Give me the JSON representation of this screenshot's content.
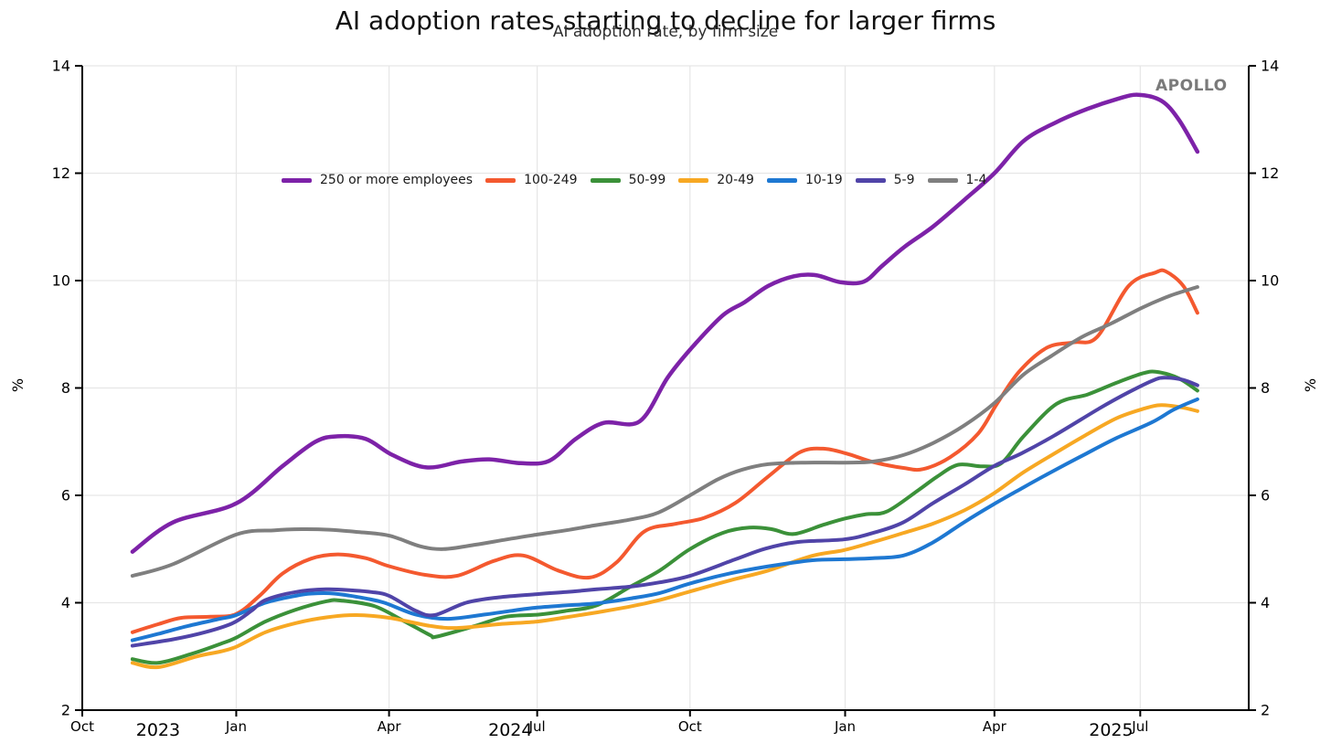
{
  "header": {
    "title": "AI adoption rates starting to decline for larger firms",
    "subtitle": "AI adoption rate, by firm size",
    "brand": "APOLLO"
  },
  "legend": {
    "items": [
      {
        "label": "250 or more employees",
        "color": "#7D22A8"
      },
      {
        "label": "100-249",
        "color": "#F4592F"
      },
      {
        "label": "50-99",
        "color": "#3B9139"
      },
      {
        "label": "20-49",
        "color": "#F7A823"
      },
      {
        "label": "10-19",
        "color": "#1E78D2"
      },
      {
        "label": "5-9",
        "color": "#5044A8"
      },
      {
        "label": "1-4",
        "color": "#7F7F7F"
      }
    ]
  },
  "chart_data": {
    "type": "line",
    "title": "AI adoption rates starting to decline for larger firms",
    "subtitle": "AI adoption rate, by firm size",
    "ylabel_left": "%",
    "ylabel_right": "%",
    "ylim": [
      2,
      14
    ],
    "yticks": [
      2,
      4,
      6,
      8,
      10,
      12,
      14
    ],
    "grid": true,
    "grid_color": "#E6E6E6",
    "axis_color": "#000000",
    "legend_position": "upper-left-inside",
    "x_axis": {
      "month_ticks": [
        {
          "label": "Oct",
          "pos": 0
        },
        {
          "label": "Jan",
          "pos": 13.2
        },
        {
          "label": "Apr",
          "pos": 26.3
        },
        {
          "label": "Jul",
          "pos": 39.0
        },
        {
          "label": "Oct",
          "pos": 52.1
        },
        {
          "label": "Jan",
          "pos": 65.4
        },
        {
          "label": "Apr",
          "pos": 78.2
        },
        {
          "label": "Jul",
          "pos": 90.7
        }
      ],
      "year_labels": [
        {
          "label": "2023",
          "pos": 6.5
        },
        {
          "label": "2024",
          "pos": 36.7
        },
        {
          "label": "2025",
          "pos": 88.2
        }
      ]
    },
    "series": [
      {
        "name": "250 or more employees",
        "color": "#7D22A8",
        "width": 4.5,
        "points": [
          [
            4.3,
            4.95
          ],
          [
            7.8,
            5.5
          ],
          [
            13.2,
            5.85
          ],
          [
            17.2,
            6.55
          ],
          [
            20.0,
            7.0
          ],
          [
            21.9,
            7.1
          ],
          [
            24.3,
            7.05
          ],
          [
            26.6,
            6.75
          ],
          [
            29.5,
            6.52
          ],
          [
            32.5,
            6.63
          ],
          [
            34.9,
            6.67
          ],
          [
            37.6,
            6.6
          ],
          [
            40.0,
            6.64
          ],
          [
            42.3,
            7.05
          ],
          [
            44.7,
            7.35
          ],
          [
            47.8,
            7.38
          ],
          [
            50.2,
            8.2
          ],
          [
            52.3,
            8.76
          ],
          [
            54.9,
            9.35
          ],
          [
            56.8,
            9.6
          ],
          [
            58.8,
            9.9
          ],
          [
            61.0,
            10.08
          ],
          [
            62.9,
            10.1
          ],
          [
            65.0,
            9.97
          ],
          [
            67.0,
            9.98
          ],
          [
            68.6,
            10.28
          ],
          [
            70.5,
            10.63
          ],
          [
            72.9,
            11.0
          ],
          [
            75.6,
            11.5
          ],
          [
            78.2,
            12.0
          ],
          [
            80.7,
            12.6
          ],
          [
            83.5,
            12.95
          ],
          [
            86.2,
            13.2
          ],
          [
            88.7,
            13.38
          ],
          [
            90.5,
            13.46
          ],
          [
            92.5,
            13.35
          ],
          [
            94.0,
            13.0
          ],
          [
            95.6,
            12.4
          ]
        ]
      },
      {
        "name": "100-249",
        "color": "#F4592F",
        "width": 4,
        "points": [
          [
            4.3,
            3.45
          ],
          [
            6.5,
            3.6
          ],
          [
            8.5,
            3.72
          ],
          [
            11.0,
            3.74
          ],
          [
            13.2,
            3.79
          ],
          [
            15.3,
            4.15
          ],
          [
            17.2,
            4.55
          ],
          [
            19.6,
            4.82
          ],
          [
            21.9,
            4.9
          ],
          [
            24.3,
            4.83
          ],
          [
            26.3,
            4.68
          ],
          [
            29.4,
            4.52
          ],
          [
            32.1,
            4.5
          ],
          [
            35.3,
            4.78
          ],
          [
            37.8,
            4.88
          ],
          [
            40.8,
            4.6
          ],
          [
            43.5,
            4.47
          ],
          [
            45.8,
            4.75
          ],
          [
            48.2,
            5.33
          ],
          [
            50.9,
            5.47
          ],
          [
            53.3,
            5.58
          ],
          [
            56.0,
            5.86
          ],
          [
            58.8,
            6.35
          ],
          [
            61.5,
            6.8
          ],
          [
            63.5,
            6.87
          ],
          [
            65.5,
            6.78
          ],
          [
            67.8,
            6.62
          ],
          [
            70.4,
            6.51
          ],
          [
            72.1,
            6.49
          ],
          [
            74.4,
            6.71
          ],
          [
            76.8,
            7.15
          ],
          [
            78.4,
            7.7
          ],
          [
            80.3,
            8.3
          ],
          [
            82.7,
            8.75
          ],
          [
            85.0,
            8.85
          ],
          [
            87.0,
            8.95
          ],
          [
            89.7,
            9.9
          ],
          [
            92.0,
            10.15
          ],
          [
            92.9,
            10.17
          ],
          [
            94.4,
            9.9
          ],
          [
            95.6,
            9.4
          ]
        ]
      },
      {
        "name": "50-99",
        "color": "#3B9139",
        "width": 4,
        "points": [
          [
            4.3,
            2.95
          ],
          [
            6.5,
            2.88
          ],
          [
            9.4,
            3.05
          ],
          [
            11.8,
            3.23
          ],
          [
            13.2,
            3.35
          ],
          [
            15.7,
            3.65
          ],
          [
            18.3,
            3.87
          ],
          [
            21.0,
            4.03
          ],
          [
            22.2,
            4.04
          ],
          [
            25.0,
            3.94
          ],
          [
            27.4,
            3.68
          ],
          [
            29.8,
            3.4
          ],
          [
            30.4,
            3.37
          ],
          [
            33.7,
            3.57
          ],
          [
            36.3,
            3.74
          ],
          [
            39.2,
            3.78
          ],
          [
            41.5,
            3.85
          ],
          [
            44.1,
            3.95
          ],
          [
            47.0,
            4.3
          ],
          [
            49.5,
            4.6
          ],
          [
            52.1,
            5.0
          ],
          [
            54.9,
            5.3
          ],
          [
            57.2,
            5.4
          ],
          [
            59.1,
            5.37
          ],
          [
            61.0,
            5.28
          ],
          [
            63.5,
            5.45
          ],
          [
            65.4,
            5.57
          ],
          [
            67.2,
            5.65
          ],
          [
            69.0,
            5.7
          ],
          [
            71.7,
            6.1
          ],
          [
            73.3,
            6.35
          ],
          [
            75.1,
            6.57
          ],
          [
            77.2,
            6.54
          ],
          [
            78.8,
            6.6
          ],
          [
            80.7,
            7.1
          ],
          [
            83.5,
            7.7
          ],
          [
            86.2,
            7.88
          ],
          [
            88.7,
            8.1
          ],
          [
            90.9,
            8.27
          ],
          [
            92.1,
            8.3
          ],
          [
            94.0,
            8.18
          ],
          [
            95.6,
            7.95
          ]
        ]
      },
      {
        "name": "20-49",
        "color": "#F7A823",
        "width": 4,
        "points": [
          [
            4.3,
            2.88
          ],
          [
            6.5,
            2.8
          ],
          [
            9.8,
            3.0
          ],
          [
            11.8,
            3.09
          ],
          [
            13.2,
            3.18
          ],
          [
            15.7,
            3.45
          ],
          [
            18.3,
            3.62
          ],
          [
            21.0,
            3.73
          ],
          [
            23.5,
            3.77
          ],
          [
            26.3,
            3.72
          ],
          [
            29.8,
            3.57
          ],
          [
            32.1,
            3.53
          ],
          [
            35.7,
            3.6
          ],
          [
            39.0,
            3.65
          ],
          [
            41.5,
            3.73
          ],
          [
            44.1,
            3.82
          ],
          [
            47.0,
            3.93
          ],
          [
            49.5,
            4.05
          ],
          [
            52.1,
            4.21
          ],
          [
            55.6,
            4.42
          ],
          [
            58.8,
            4.6
          ],
          [
            62.5,
            4.87
          ],
          [
            65.3,
            4.98
          ],
          [
            67.8,
            5.13
          ],
          [
            70.4,
            5.3
          ],
          [
            72.9,
            5.47
          ],
          [
            75.6,
            5.72
          ],
          [
            78.1,
            6.03
          ],
          [
            80.7,
            6.43
          ],
          [
            83.5,
            6.8
          ],
          [
            86.0,
            7.12
          ],
          [
            88.7,
            7.44
          ],
          [
            91.1,
            7.62
          ],
          [
            92.5,
            7.68
          ],
          [
            94.2,
            7.64
          ],
          [
            95.6,
            7.57
          ]
        ]
      },
      {
        "name": "10-19",
        "color": "#1E78D2",
        "width": 4,
        "points": [
          [
            4.3,
            3.3
          ],
          [
            6.5,
            3.42
          ],
          [
            9.1,
            3.57
          ],
          [
            11.8,
            3.7
          ],
          [
            13.2,
            3.77
          ],
          [
            15.7,
            4.0
          ],
          [
            18.3,
            4.13
          ],
          [
            19.6,
            4.17
          ],
          [
            21.6,
            4.17
          ],
          [
            24.3,
            4.08
          ],
          [
            25.9,
            4.0
          ],
          [
            28.6,
            3.78
          ],
          [
            31.3,
            3.7
          ],
          [
            34.5,
            3.78
          ],
          [
            36.8,
            3.85
          ],
          [
            39.0,
            3.91
          ],
          [
            41.5,
            3.95
          ],
          [
            44.1,
            3.99
          ],
          [
            47.0,
            4.08
          ],
          [
            49.5,
            4.18
          ],
          [
            52.1,
            4.36
          ],
          [
            55.6,
            4.55
          ],
          [
            58.6,
            4.67
          ],
          [
            62.5,
            4.79
          ],
          [
            65.3,
            4.81
          ],
          [
            67.8,
            4.83
          ],
          [
            70.4,
            4.88
          ],
          [
            72.9,
            5.12
          ],
          [
            75.6,
            5.5
          ],
          [
            78.1,
            5.83
          ],
          [
            80.7,
            6.15
          ],
          [
            83.3,
            6.46
          ],
          [
            86.0,
            6.77
          ],
          [
            88.6,
            7.06
          ],
          [
            91.7,
            7.36
          ],
          [
            93.6,
            7.6
          ],
          [
            95.6,
            7.79
          ]
        ]
      },
      {
        "name": "5-9",
        "color": "#5044A8",
        "width": 4,
        "points": [
          [
            4.3,
            3.2
          ],
          [
            7.8,
            3.32
          ],
          [
            10.5,
            3.45
          ],
          [
            12.9,
            3.62
          ],
          [
            14.5,
            3.85
          ],
          [
            15.7,
            4.05
          ],
          [
            18.3,
            4.2
          ],
          [
            20.9,
            4.25
          ],
          [
            23.2,
            4.23
          ],
          [
            24.8,
            4.2
          ],
          [
            26.3,
            4.13
          ],
          [
            28.6,
            3.85
          ],
          [
            30.2,
            3.77
          ],
          [
            32.9,
            4.0
          ],
          [
            35.7,
            4.1
          ],
          [
            39.0,
            4.16
          ],
          [
            41.5,
            4.2
          ],
          [
            44.1,
            4.25
          ],
          [
            47.0,
            4.3
          ],
          [
            49.5,
            4.38
          ],
          [
            52.1,
            4.5
          ],
          [
            56.0,
            4.81
          ],
          [
            58.6,
            5.01
          ],
          [
            61.3,
            5.13
          ],
          [
            65.3,
            5.18
          ],
          [
            67.8,
            5.3
          ],
          [
            70.4,
            5.5
          ],
          [
            72.9,
            5.85
          ],
          [
            75.6,
            6.2
          ],
          [
            78.2,
            6.55
          ],
          [
            80.5,
            6.78
          ],
          [
            83.3,
            7.11
          ],
          [
            87.2,
            7.62
          ],
          [
            89.7,
            7.92
          ],
          [
            91.9,
            8.15
          ],
          [
            92.9,
            8.19
          ],
          [
            94.4,
            8.15
          ],
          [
            95.6,
            8.05
          ]
        ]
      },
      {
        "name": "1-4",
        "color": "#7F7F7F",
        "width": 4,
        "points": [
          [
            4.3,
            4.5
          ],
          [
            7.8,
            4.72
          ],
          [
            13.2,
            5.27
          ],
          [
            16.5,
            5.35
          ],
          [
            18.8,
            5.37
          ],
          [
            21.2,
            5.36
          ],
          [
            23.5,
            5.32
          ],
          [
            26.3,
            5.25
          ],
          [
            29.0,
            5.05
          ],
          [
            31.0,
            5.0
          ],
          [
            33.7,
            5.08
          ],
          [
            36.4,
            5.18
          ],
          [
            39.0,
            5.27
          ],
          [
            41.5,
            5.35
          ],
          [
            43.9,
            5.44
          ],
          [
            47.0,
            5.55
          ],
          [
            49.4,
            5.68
          ],
          [
            52.1,
            6.0
          ],
          [
            54.5,
            6.3
          ],
          [
            56.6,
            6.48
          ],
          [
            58.8,
            6.58
          ],
          [
            62.0,
            6.61
          ],
          [
            65.4,
            6.61
          ],
          [
            67.8,
            6.63
          ],
          [
            70.4,
            6.75
          ],
          [
            73.0,
            6.98
          ],
          [
            75.6,
            7.3
          ],
          [
            78.2,
            7.72
          ],
          [
            80.7,
            8.25
          ],
          [
            83.1,
            8.6
          ],
          [
            85.7,
            8.95
          ],
          [
            88.2,
            9.2
          ],
          [
            90.9,
            9.5
          ],
          [
            93.3,
            9.72
          ],
          [
            95.6,
            9.88
          ]
        ]
      }
    ]
  }
}
